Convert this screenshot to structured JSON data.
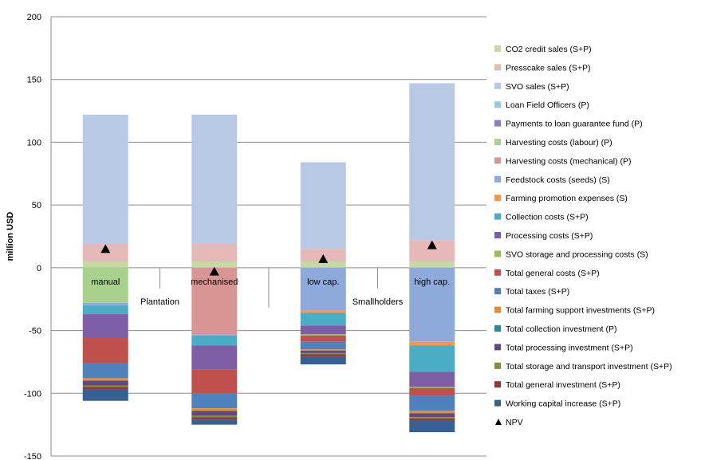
{
  "chart_data": {
    "type": "stacked-bar",
    "ylabel": "million USD",
    "ylim": [
      -150,
      200
    ],
    "yticks": [
      -150,
      -100,
      -50,
      0,
      50,
      100,
      150,
      200
    ],
    "grid": true,
    "legend_position": "right",
    "categories": [
      "manual",
      "mechanised",
      "low cap.",
      "high cap."
    ],
    "groups": [
      {
        "label": "Plantation",
        "categories": [
          "manual",
          "mechanised"
        ]
      },
      {
        "label": "Smallholders",
        "categories": [
          "low cap.",
          "high cap."
        ]
      }
    ],
    "series": [
      {
        "name": "CO2 credit sales (S+P)",
        "color": "#c6d9a5",
        "values": [
          5,
          5,
          5,
          5
        ]
      },
      {
        "name": "Presscake sales (S+P)",
        "color": "#e6b8b7",
        "values": [
          14,
          14,
          10,
          17
        ]
      },
      {
        "name": "SVO sales (S+P)",
        "color": "#b8c9e6",
        "values": [
          103,
          103,
          69,
          125
        ]
      },
      {
        "name": "Loan Field Officers (P)",
        "color": "#93cddd",
        "values": [
          0,
          0,
          0,
          0
        ]
      },
      {
        "name": "Payments to loan guarantee fund (P)",
        "color": "#8e7cc3",
        "values": [
          0,
          0,
          0,
          0
        ]
      },
      {
        "name": "Harvesting costs (labour) (P)",
        "color": "#a9d18e",
        "values": [
          -28,
          0,
          0,
          0
        ]
      },
      {
        "name": "Harvesting costs (mechanical) (P)",
        "color": "#d99594",
        "values": [
          0,
          -53,
          0,
          0
        ]
      },
      {
        "name": "Feedstock costs (seeds) (S)",
        "color": "#8eaadb",
        "values": [
          -2,
          -1,
          -34,
          -59
        ]
      },
      {
        "name": "Farming promotion expenses (S)",
        "color": "#f79646",
        "values": [
          0,
          0,
          -2,
          -3
        ]
      },
      {
        "name": "Collection costs (S+P)",
        "color": "#4bacc6",
        "values": [
          -7,
          -8,
          -10,
          -21
        ]
      },
      {
        "name": "Processing costs (S+P)",
        "color": "#7f5ea8",
        "values": [
          -19,
          -19,
          -7,
          -12
        ]
      },
      {
        "name": "SVO storage and processing costs (S)",
        "color": "#9bbb59",
        "values": [
          0,
          0,
          -1,
          -1
        ]
      },
      {
        "name": "Total general costs (S+P)",
        "color": "#c0504d",
        "values": [
          -20,
          -19,
          -5,
          -6
        ]
      },
      {
        "name": "Total taxes (S+P)",
        "color": "#4f81bd",
        "values": [
          -12,
          -12,
          -6,
          -12
        ]
      },
      {
        "name": "Total farming support investments (S+P)",
        "color": "#e08e3c",
        "values": [
          -2,
          -2,
          -1,
          -2
        ]
      },
      {
        "name": "Total collection investment (P)",
        "color": "#31859c",
        "values": [
          0,
          0,
          0,
          0
        ]
      },
      {
        "name": "Total processing investment (S+P)",
        "color": "#604a7b",
        "values": [
          -4,
          -4,
          -2,
          -3
        ]
      },
      {
        "name": "Total storage and transport investment (S+P)",
        "color": "#77933c",
        "values": [
          -1,
          -1,
          -1,
          -1
        ]
      },
      {
        "name": "Total general investment (S+P)",
        "color": "#953735",
        "values": [
          -2,
          -2,
          -2,
          -2
        ]
      },
      {
        "name": "Working capital increase (S+P)",
        "color": "#366092",
        "values": [
          -9,
          -4,
          -6,
          -9
        ]
      }
    ],
    "npv": {
      "name": "NPV",
      "values": [
        15,
        -3,
        7,
        18
      ]
    }
  }
}
